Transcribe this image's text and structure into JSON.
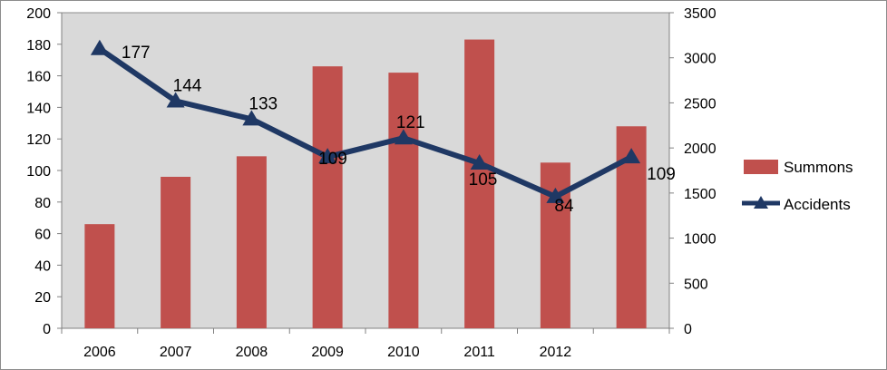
{
  "chart_data": {
    "type": "bar",
    "categories": [
      "2006",
      "2007",
      "2008",
      "2009",
      "2010",
      "2011",
      "2012",
      ""
    ],
    "series": [
      {
        "name": "Summons",
        "type": "bar",
        "axis": "left",
        "values": [
          66,
          96,
          109,
          166,
          162,
          183,
          105,
          128
        ]
      },
      {
        "name": "Accidents",
        "type": "line",
        "axis": "right",
        "values": [
          177,
          144,
          133,
          109,
          121,
          105,
          84,
          109
        ]
      }
    ],
    "y_left": {
      "ylim": [
        0,
        200
      ],
      "ticks": [
        0,
        20,
        40,
        60,
        80,
        100,
        120,
        140,
        160,
        180,
        200
      ]
    },
    "y_right": {
      "ylim": [
        0,
        3500
      ],
      "ticks": [
        0,
        500,
        1000,
        1500,
        2000,
        2500,
        3000,
        3500
      ]
    },
    "accidents_plot_values": [
      3100,
      2520,
      2320,
      1900,
      2110,
      1830,
      1460,
      1900
    ],
    "grid": false,
    "legend_position": "right",
    "colors": {
      "bar": "#C0504D",
      "line": "#1F3864",
      "plot_bg": "#D9D9D9"
    }
  }
}
